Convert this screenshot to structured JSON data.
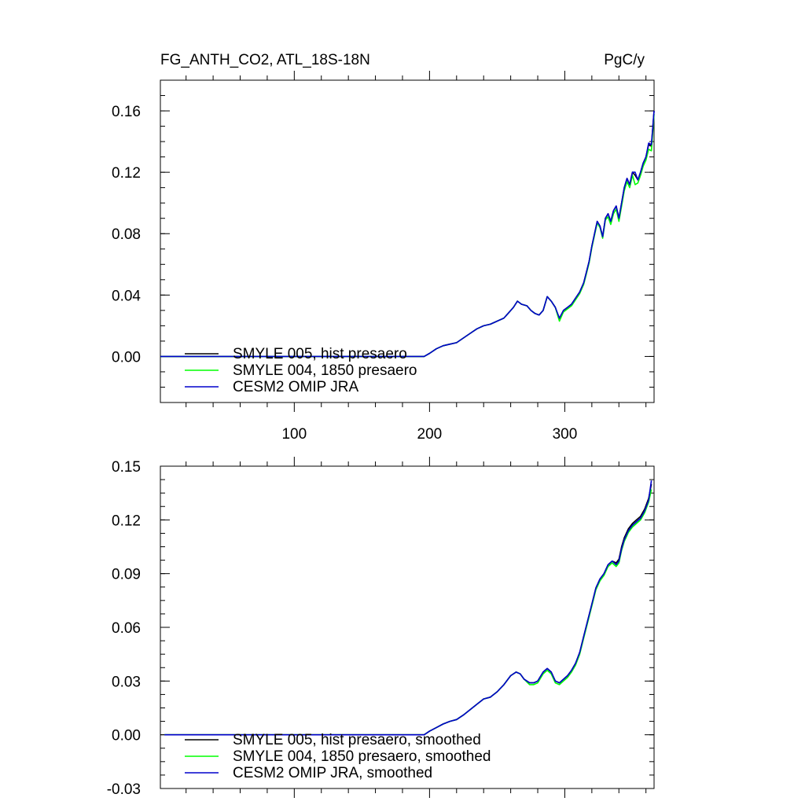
{
  "chart_data": [
    {
      "type": "line",
      "title": "FG_ANTH_CO2, ATL_18S-18N",
      "units": "PgC/y",
      "xlim": [
        1,
        366
      ],
      "ylim": [
        -0.03,
        0.18
      ],
      "xticks": [
        100,
        200,
        300
      ],
      "xtick_labels": [
        "100",
        "200",
        "300"
      ],
      "yticks": [
        0.0,
        0.04,
        0.08,
        0.12,
        0.16
      ],
      "ytick_labels": [
        "0.00",
        "0.04",
        "0.08",
        "0.12",
        "0.16"
      ],
      "legend_position": "bottom-left",
      "series": [
        {
          "name": "SMYLE 005, hist presaero",
          "color": "#000000",
          "x": [
            1,
            196,
            200,
            205,
            210,
            215,
            220,
            225,
            230,
            235,
            240,
            245,
            250,
            255,
            258,
            262,
            265,
            268,
            272,
            275,
            278,
            281,
            284,
            287,
            290,
            293,
            296,
            299,
            302,
            305,
            308,
            311,
            314,
            316,
            318,
            320,
            322,
            324,
            326,
            328,
            330,
            332,
            334,
            336,
            338,
            340,
            342,
            344,
            346,
            348,
            350,
            352,
            354,
            356,
            358,
            360,
            362,
            364,
            366
          ],
          "values": [
            0.0,
            0.0,
            0.002,
            0.005,
            0.007,
            0.008,
            0.009,
            0.012,
            0.015,
            0.018,
            0.02,
            0.021,
            0.023,
            0.025,
            0.028,
            0.032,
            0.036,
            0.034,
            0.033,
            0.03,
            0.028,
            0.027,
            0.03,
            0.039,
            0.036,
            0.032,
            0.024,
            0.03,
            0.032,
            0.034,
            0.038,
            0.042,
            0.048,
            0.055,
            0.062,
            0.072,
            0.08,
            0.088,
            0.085,
            0.078,
            0.09,
            0.093,
            0.088,
            0.095,
            0.098,
            0.09,
            0.1,
            0.11,
            0.116,
            0.112,
            0.12,
            0.118,
            0.115,
            0.12,
            0.126,
            0.13,
            0.138,
            0.137,
            0.16
          ]
        },
        {
          "name": "SMYLE 004, 1850 presaero",
          "color": "#00ff00",
          "x": [
            1,
            196,
            200,
            205,
            210,
            215,
            220,
            225,
            230,
            235,
            240,
            245,
            250,
            255,
            258,
            262,
            265,
            268,
            272,
            275,
            278,
            281,
            284,
            287,
            290,
            293,
            296,
            299,
            302,
            305,
            308,
            311,
            314,
            316,
            318,
            320,
            322,
            324,
            326,
            328,
            330,
            332,
            334,
            336,
            338,
            340,
            342,
            344,
            346,
            348,
            350,
            352,
            354,
            356,
            358,
            360,
            362,
            364,
            366
          ],
          "values": [
            0.0,
            0.0,
            0.002,
            0.005,
            0.007,
            0.008,
            0.009,
            0.012,
            0.015,
            0.018,
            0.02,
            0.021,
            0.023,
            0.025,
            0.028,
            0.032,
            0.036,
            0.034,
            0.033,
            0.03,
            0.028,
            0.027,
            0.03,
            0.039,
            0.036,
            0.032,
            0.023,
            0.029,
            0.031,
            0.033,
            0.037,
            0.041,
            0.047,
            0.054,
            0.061,
            0.071,
            0.079,
            0.087,
            0.084,
            0.077,
            0.089,
            0.091,
            0.086,
            0.093,
            0.096,
            0.088,
            0.098,
            0.108,
            0.114,
            0.11,
            0.118,
            0.112,
            0.113,
            0.118,
            0.124,
            0.128,
            0.135,
            0.134,
            0.158
          ]
        },
        {
          "name": "CESM2 OMIP JRA",
          "color": "#0000cc",
          "x": [
            1,
            196,
            200,
            205,
            210,
            215,
            220,
            225,
            230,
            235,
            240,
            245,
            250,
            255,
            258,
            262,
            265,
            268,
            272,
            275,
            278,
            281,
            284,
            287,
            290,
            293,
            296,
            299,
            302,
            305,
            308,
            311,
            314,
            316,
            318,
            320,
            322,
            324,
            326,
            328,
            330,
            332,
            334,
            336,
            338,
            340,
            342,
            344,
            346,
            348,
            350,
            352,
            354,
            356,
            358,
            360,
            362,
            364,
            366
          ],
          "values": [
            0.0,
            0.0,
            0.002,
            0.005,
            0.007,
            0.008,
            0.009,
            0.012,
            0.015,
            0.018,
            0.02,
            0.021,
            0.023,
            0.025,
            0.028,
            0.032,
            0.036,
            0.034,
            0.033,
            0.03,
            0.028,
            0.027,
            0.03,
            0.039,
            0.036,
            0.032,
            0.025,
            0.03,
            0.032,
            0.034,
            0.038,
            0.042,
            0.048,
            0.055,
            0.062,
            0.072,
            0.08,
            0.088,
            0.085,
            0.078,
            0.09,
            0.093,
            0.088,
            0.095,
            0.098,
            0.09,
            0.1,
            0.11,
            0.116,
            0.112,
            0.12,
            0.12,
            0.115,
            0.12,
            0.126,
            0.13,
            0.139,
            0.138,
            0.16
          ]
        }
      ]
    },
    {
      "type": "line",
      "title": "",
      "xlim": [
        1,
        366
      ],
      "ylim": [
        -0.03,
        0.15
      ],
      "yticks": [
        -0.03,
        0.0,
        0.03,
        0.06,
        0.09,
        0.12,
        0.15
      ],
      "ytick_labels": [
        "-0.03",
        "0.00",
        "0.03",
        "0.06",
        "0.09",
        "0.12",
        "0.15"
      ],
      "legend_position": "bottom-left",
      "series": [
        {
          "name": "SMYLE 005, hist presaero, smoothed",
          "color": "#000000",
          "x": [
            4,
            196,
            200,
            205,
            210,
            215,
            220,
            225,
            230,
            235,
            240,
            245,
            250,
            255,
            260,
            264,
            267,
            270,
            274,
            277,
            280,
            284,
            287,
            290,
            293,
            296,
            299,
            302,
            305,
            308,
            311,
            314,
            317,
            320,
            323,
            326,
            329,
            332,
            335,
            338,
            340,
            342,
            344,
            347,
            350,
            353,
            356,
            359,
            362,
            364
          ],
          "values": [
            0.0,
            0.0,
            0.002,
            0.004,
            0.006,
            0.0075,
            0.0085,
            0.011,
            0.014,
            0.017,
            0.02,
            0.021,
            0.024,
            0.028,
            0.033,
            0.035,
            0.034,
            0.031,
            0.029,
            0.029,
            0.03,
            0.035,
            0.037,
            0.035,
            0.03,
            0.029,
            0.031,
            0.033,
            0.036,
            0.04,
            0.046,
            0.055,
            0.064,
            0.073,
            0.082,
            0.087,
            0.09,
            0.095,
            0.097,
            0.096,
            0.098,
            0.105,
            0.11,
            0.115,
            0.118,
            0.12,
            0.122,
            0.126,
            0.132,
            0.14
          ]
        },
        {
          "name": "SMYLE 004, 1850 presaero, smoothed",
          "color": "#00ff00",
          "x": [
            4,
            196,
            200,
            205,
            210,
            215,
            220,
            225,
            230,
            235,
            240,
            245,
            250,
            255,
            260,
            264,
            267,
            270,
            274,
            277,
            280,
            284,
            287,
            290,
            293,
            296,
            299,
            302,
            305,
            308,
            311,
            314,
            317,
            320,
            323,
            326,
            329,
            332,
            335,
            338,
            340,
            342,
            344,
            347,
            350,
            353,
            356,
            359,
            362,
            364
          ],
          "values": [
            0.0,
            0.0,
            0.002,
            0.004,
            0.006,
            0.0075,
            0.0085,
            0.011,
            0.014,
            0.017,
            0.02,
            0.021,
            0.024,
            0.028,
            0.033,
            0.035,
            0.034,
            0.031,
            0.028,
            0.028,
            0.029,
            0.034,
            0.036,
            0.034,
            0.029,
            0.028,
            0.03,
            0.032,
            0.035,
            0.039,
            0.045,
            0.054,
            0.063,
            0.072,
            0.081,
            0.086,
            0.089,
            0.094,
            0.096,
            0.094,
            0.096,
            0.103,
            0.108,
            0.113,
            0.116,
            0.118,
            0.12,
            0.124,
            0.13,
            0.137
          ]
        },
        {
          "name": "CESM2 OMIP JRA, smoothed",
          "color": "#0000cc",
          "x": [
            4,
            196,
            200,
            205,
            210,
            215,
            220,
            225,
            230,
            235,
            240,
            245,
            250,
            255,
            260,
            264,
            267,
            270,
            274,
            277,
            280,
            284,
            287,
            290,
            293,
            296,
            299,
            302,
            305,
            308,
            311,
            314,
            317,
            320,
            323,
            326,
            329,
            332,
            335,
            338,
            340,
            342,
            344,
            347,
            350,
            353,
            356,
            359,
            362,
            364
          ],
          "values": [
            0.0,
            0.0,
            0.002,
            0.004,
            0.006,
            0.0075,
            0.0085,
            0.011,
            0.014,
            0.017,
            0.02,
            0.021,
            0.024,
            0.028,
            0.033,
            0.035,
            0.034,
            0.031,
            0.029,
            0.029,
            0.03,
            0.035,
            0.037,
            0.035,
            0.03,
            0.029,
            0.031,
            0.033,
            0.036,
            0.04,
            0.046,
            0.055,
            0.064,
            0.073,
            0.082,
            0.087,
            0.09,
            0.095,
            0.097,
            0.095,
            0.097,
            0.104,
            0.109,
            0.114,
            0.117,
            0.119,
            0.121,
            0.125,
            0.131,
            0.142
          ]
        }
      ]
    }
  ]
}
